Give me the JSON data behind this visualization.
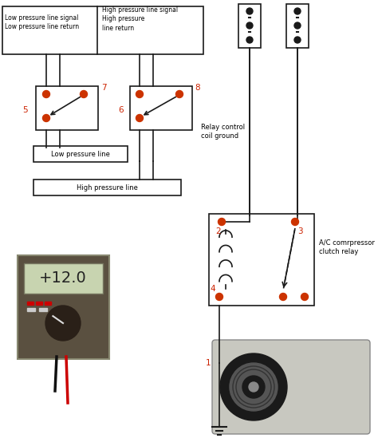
{
  "bg_color": "#ffffff",
  "line_color": "#1a1a1a",
  "red_color": "#cc2200",
  "dot_color": "#cc3300",
  "labels": {
    "low_pressure_signal": "Low pressure line signal\nLow pressure line return",
    "high_pressure_signal": "High pressure line signal\nHigh pressure\nline return",
    "relay_control": "Relay control\ncoil ground",
    "low_pressure_line": "Low pressure line",
    "high_pressure_line": "High pressure line",
    "ac_relay": "A/C comrpressor\nclutch relay",
    "num5": "5",
    "num6": "6",
    "num7": "7",
    "num8": "8",
    "num1": "1",
    "num2": "2",
    "num3": "3",
    "num4": "4"
  }
}
